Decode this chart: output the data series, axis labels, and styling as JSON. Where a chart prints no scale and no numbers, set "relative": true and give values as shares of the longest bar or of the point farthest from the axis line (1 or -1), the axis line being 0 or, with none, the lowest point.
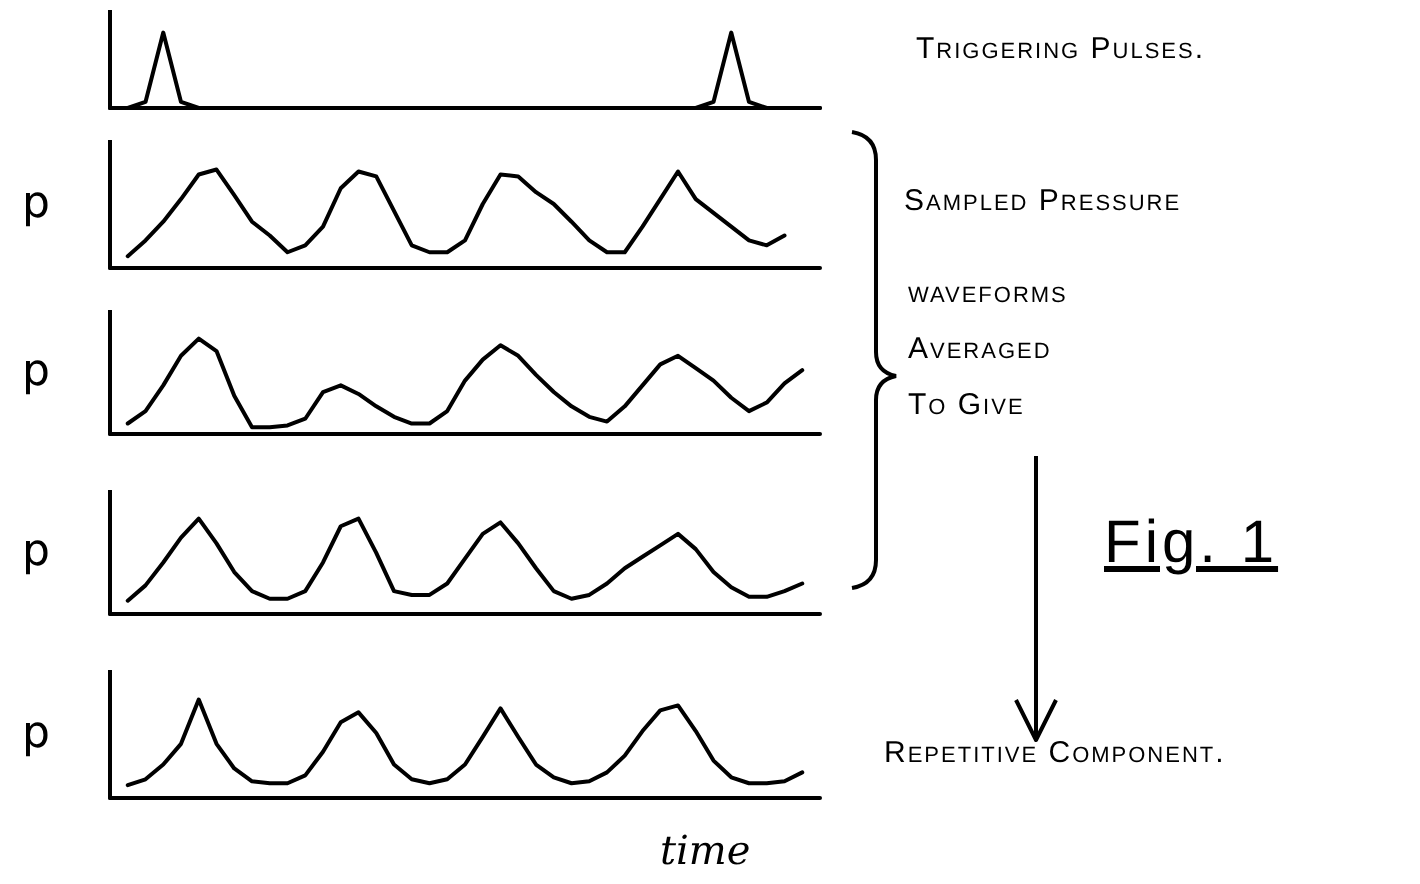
{
  "chart_data": [
    {
      "type": "line",
      "relative": true,
      "marker": "none",
      "categories": [
        null,
        null,
        null,
        null,
        null,
        null,
        null,
        null,
        null,
        null,
        null,
        null,
        null,
        null,
        null,
        null,
        null,
        null,
        null,
        null,
        null,
        null,
        null,
        null,
        null,
        null,
        null,
        null,
        null,
        null,
        null,
        null,
        null,
        null,
        null,
        null,
        null,
        null,
        null,
        null,
        null
      ],
      "annotations": [
        "Triggering Pulses."
      ],
      "series": [
        {
          "color": "#000000",
          "values": [
            0,
            0,
            0.08,
            1,
            0.08,
            0,
            0,
            0,
            0,
            0,
            0,
            0,
            0,
            0,
            0,
            0,
            0,
            0,
            0,
            0,
            0,
            0,
            0,
            0,
            0,
            0,
            0,
            0,
            0,
            0,
            0,
            0,
            0,
            0,
            0.08,
            1,
            0.08,
            0,
            0,
            0,
            0
          ]
        }
      ]
    },
    {
      "type": "line",
      "relative": true,
      "marker": "none",
      "ylabel": "p",
      "categories": [
        null,
        null,
        null,
        null,
        null,
        null,
        null,
        null,
        null,
        null,
        null,
        null,
        null,
        null,
        null,
        null,
        null,
        null,
        null,
        null,
        null,
        null,
        null,
        null,
        null,
        null,
        null,
        null,
        null,
        null,
        null,
        null,
        null,
        null,
        null,
        null,
        null,
        null,
        null,
        null,
        null
      ],
      "series": [
        {
          "color": "#000000",
          "values": [
            null,
            0.12,
            0.28,
            0.47,
            0.7,
            0.95,
            1,
            0.74,
            0.47,
            0.33,
            0.16,
            0.23,
            0.42,
            0.81,
            0.98,
            0.93,
            0.58,
            0.23,
            0.16,
            0.16,
            0.28,
            0.65,
            0.95,
            0.93,
            0.77,
            0.65,
            0.47,
            0.28,
            0.16,
            0.16,
            0.42,
            0.7,
            0.98,
            0.7,
            0.56,
            0.42,
            0.28,
            0.23,
            0.33,
            null,
            null
          ]
        }
      ]
    },
    {
      "type": "line",
      "relative": true,
      "marker": "none",
      "ylabel": "p",
      "categories": [
        null,
        null,
        null,
        null,
        null,
        null,
        null,
        null,
        null,
        null,
        null,
        null,
        null,
        null,
        null,
        null,
        null,
        null,
        null,
        null,
        null,
        null,
        null,
        null,
        null,
        null,
        null,
        null,
        null,
        null,
        null,
        null,
        null,
        null,
        null,
        null,
        null,
        null,
        null,
        null,
        null
      ],
      "annotations": [
        "Sampled Pressure",
        "waveforms",
        "Averaged",
        "To Give"
      ],
      "series": [
        {
          "color": "#000000",
          "values": [
            null,
            0.11,
            0.24,
            0.51,
            0.82,
            1,
            0.87,
            0.4,
            0.07,
            0.07,
            0.09,
            0.16,
            0.44,
            0.51,
            0.42,
            0.29,
            0.18,
            0.11,
            0.11,
            0.24,
            0.56,
            0.78,
            0.93,
            0.82,
            0.62,
            0.44,
            0.29,
            0.18,
            0.13,
            0.29,
            0.51,
            0.73,
            0.82,
            0.69,
            0.56,
            0.38,
            0.24,
            0.33,
            0.53,
            0.67,
            null
          ]
        }
      ]
    },
    {
      "type": "line",
      "relative": true,
      "marker": "none",
      "ylabel": "p",
      "categories": [
        null,
        null,
        null,
        null,
        null,
        null,
        null,
        null,
        null,
        null,
        null,
        null,
        null,
        null,
        null,
        null,
        null,
        null,
        null,
        null,
        null,
        null,
        null,
        null,
        null,
        null,
        null,
        null,
        null,
        null,
        null,
        null,
        null,
        null,
        null,
        null,
        null,
        null,
        null,
        null,
        null
      ],
      "annotations": [
        "Fig. 1"
      ],
      "series": [
        {
          "color": "#000000",
          "values": [
            null,
            0.14,
            0.3,
            0.54,
            0.8,
            1,
            0.74,
            0.44,
            0.24,
            0.16,
            0.16,
            0.24,
            0.54,
            0.92,
            1,
            0.64,
            0.24,
            0.2,
            0.2,
            0.32,
            0.58,
            0.84,
            0.96,
            0.74,
            0.48,
            0.24,
            0.16,
            0.2,
            0.32,
            0.48,
            0.6,
            0.72,
            0.84,
            0.68,
            0.44,
            0.28,
            0.18,
            0.18,
            0.24,
            0.32,
            null
          ]
        }
      ]
    },
    {
      "type": "line",
      "relative": true,
      "marker": "none",
      "ylabel": "p",
      "xlabel": "time",
      "categories": [
        null,
        null,
        null,
        null,
        null,
        null,
        null,
        null,
        null,
        null,
        null,
        null,
        null,
        null,
        null,
        null,
        null,
        null,
        null,
        null,
        null,
        null,
        null,
        null,
        null,
        null,
        null,
        null,
        null,
        null,
        null,
        null,
        null,
        null,
        null,
        null,
        null,
        null,
        null,
        null,
        null
      ],
      "annotations": [
        "Repetitive Component."
      ],
      "series": [
        {
          "color": "#000000",
          "values": [
            null,
            0.13,
            0.19,
            0.34,
            0.55,
            1,
            0.55,
            0.3,
            0.17,
            0.15,
            0.15,
            0.23,
            0.47,
            0.77,
            0.87,
            0.66,
            0.34,
            0.19,
            0.15,
            0.19,
            0.34,
            0.62,
            0.91,
            0.62,
            0.34,
            0.21,
            0.15,
            0.17,
            0.26,
            0.43,
            0.68,
            0.89,
            0.94,
            0.68,
            0.38,
            0.21,
            0.15,
            0.15,
            0.17,
            0.26,
            null
          ]
        }
      ]
    }
  ]
}
